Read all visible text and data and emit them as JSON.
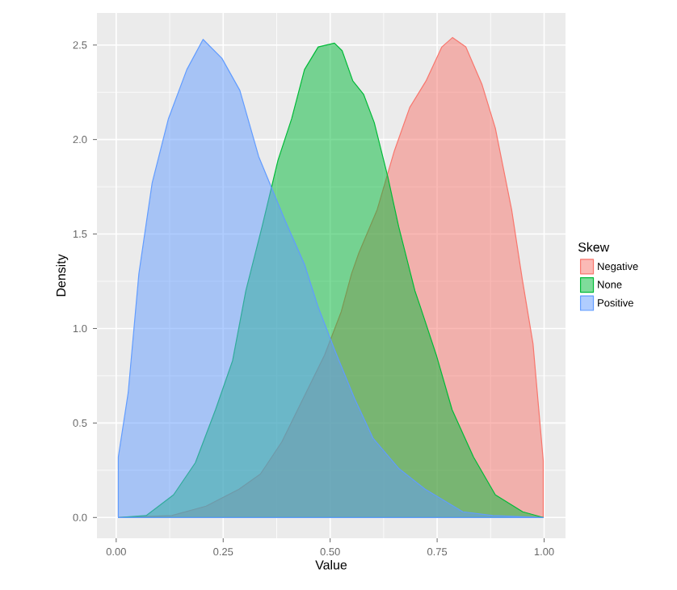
{
  "chart_data": {
    "type": "area",
    "xlabel": "Value",
    "ylabel": "Density",
    "legend_title": "Skew",
    "legend": "right",
    "grid": true,
    "xlim": [
      -0.045,
      1.05
    ],
    "ylim": [
      -0.11,
      2.67
    ],
    "xticks": [
      {
        "value": 0,
        "label": "0.00"
      },
      {
        "value": 0.25,
        "label": "0.25"
      },
      {
        "value": 0.5,
        "label": "0.50"
      },
      {
        "value": 0.75,
        "label": "0.75"
      },
      {
        "value": 1,
        "label": "1.00"
      }
    ],
    "yticks": [
      {
        "value": 0,
        "label": "0.0"
      },
      {
        "value": 0.5,
        "label": "0.5"
      },
      {
        "value": 1,
        "label": "1.0"
      },
      {
        "value": 1.5,
        "label": "1.5"
      },
      {
        "value": 2,
        "label": "2.0"
      },
      {
        "value": 2.5,
        "label": "2.5"
      }
    ],
    "series": [
      {
        "name": "Negative",
        "color": "#f8766d",
        "x": [
          0.005,
          0.13,
          0.21,
          0.287,
          0.337,
          0.387,
          0.437,
          0.487,
          0.526,
          0.55,
          0.567,
          0.61,
          0.65,
          0.686,
          0.724,
          0.761,
          0.786,
          0.817,
          0.855,
          0.886,
          0.924,
          0.949,
          0.974,
          0.998
        ],
        "values": [
          0,
          0.01,
          0.06,
          0.15,
          0.23,
          0.4,
          0.63,
          0.86,
          1.09,
          1.29,
          1.4,
          1.63,
          1.94,
          2.17,
          2.31,
          2.49,
          2.54,
          2.49,
          2.29,
          2.06,
          1.63,
          1.26,
          0.92,
          0.3
        ]
      },
      {
        "name": "None",
        "color": "#00ba38",
        "x": [
          0.005,
          0.07,
          0.134,
          0.185,
          0.232,
          0.272,
          0.303,
          0.341,
          0.378,
          0.41,
          0.44,
          0.472,
          0.51,
          0.528,
          0.553,
          0.578,
          0.603,
          0.635,
          0.66,
          0.698,
          0.71,
          0.748,
          0.785,
          0.835,
          0.886,
          0.95,
          0.998
        ],
        "values": [
          0,
          0.01,
          0.12,
          0.29,
          0.57,
          0.83,
          1.2,
          1.54,
          1.89,
          2.11,
          2.37,
          2.49,
          2.51,
          2.47,
          2.31,
          2.24,
          2.09,
          1.8,
          1.54,
          1.2,
          1.12,
          0.86,
          0.57,
          0.32,
          0.12,
          0.03,
          0
        ]
      },
      {
        "name": "Positive",
        "color": "#619cff",
        "x": [
          0.005,
          0.028,
          0.053,
          0.084,
          0.122,
          0.165,
          0.203,
          0.247,
          0.289,
          0.333,
          0.395,
          0.44,
          0.471,
          0.51,
          0.557,
          0.6,
          0.66,
          0.722,
          0.81,
          0.88,
          0.998
        ],
        "values": [
          0.32,
          0.66,
          1.29,
          1.77,
          2.11,
          2.37,
          2.53,
          2.43,
          2.26,
          1.91,
          1.57,
          1.34,
          1.12,
          0.89,
          0.63,
          0.42,
          0.26,
          0.15,
          0.03,
          0.01,
          0
        ]
      }
    ]
  }
}
